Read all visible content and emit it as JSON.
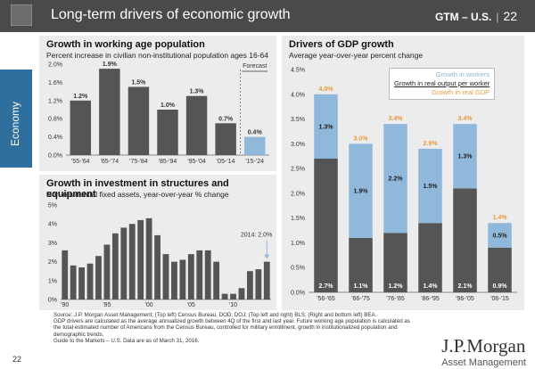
{
  "header": {
    "title": "Long-term drivers of economic growth",
    "right_label": "GTM – U.S.",
    "page": "22"
  },
  "side_tab": "Economy",
  "chart_data": [
    {
      "id": "working_age",
      "type": "bar",
      "title": "Growth in working age population",
      "subtitle": "Percent increase in civilian non-institutional population ages 16-64",
      "categories": [
        "'55-'64",
        "'65-'74",
        "'75-'84",
        "'85-'94",
        "'95-'04",
        "'05-'14",
        "'15-'24"
      ],
      "values": [
        1.2,
        1.9,
        1.5,
        1.0,
        1.3,
        0.7,
        0.4
      ],
      "data_labels": [
        "1.2%",
        "1.9%",
        "1.5%",
        "1.0%",
        "1.3%",
        "0.7%",
        "0.4%"
      ],
      "forecast_label": "Forecast",
      "forecast_index": 6,
      "yticks": [
        "0.0%",
        "0.4%",
        "0.8%",
        "1.2%",
        "1.6%",
        "2.0%"
      ],
      "ylim": [
        0,
        2.0
      ],
      "colors": {
        "bar": "#555555",
        "forecast": "#8fb8da"
      }
    },
    {
      "id": "investment",
      "type": "bar",
      "title": "Growth in investment in structures and equipment",
      "subtitle": "Non-residential fixed assets, year-over-year % change",
      "x": [
        1990,
        1991,
        1992,
        1993,
        1994,
        1995,
        1996,
        1997,
        1998,
        1999,
        2000,
        2001,
        2002,
        2003,
        2004,
        2005,
        2006,
        2007,
        2008,
        2009,
        2010,
        2011,
        2012,
        2013,
        2014
      ],
      "values": [
        2.6,
        1.8,
        1.7,
        1.9,
        2.3,
        2.9,
        3.5,
        3.8,
        4.0,
        4.2,
        4.3,
        3.4,
        2.4,
        2.0,
        2.1,
        2.4,
        2.6,
        2.6,
        2.0,
        0.3,
        0.3,
        0.6,
        1.5,
        1.6,
        2.0
      ],
      "xtick_labels": [
        "'90",
        "'95",
        "'00",
        "'05",
        "'10"
      ],
      "annotation": "2014: 2.0%",
      "yticks": [
        "0%",
        "1%",
        "2%",
        "3%",
        "4%",
        "5%"
      ],
      "ylim": [
        0,
        5
      ],
      "colors": {
        "bar": "#555555",
        "annotation": "#8fb8da"
      }
    },
    {
      "id": "gdp_drivers",
      "type": "bar",
      "title": "Drivers of GDP growth",
      "subtitle": "Average year-over-year percent change",
      "categories": [
        "'56-'65",
        "'66-'75",
        "'76-'85",
        "'86-'95",
        "'96-'05",
        "'06-'15"
      ],
      "series": [
        {
          "name": "Growth in real output per worker",
          "values": [
            2.7,
            1.1,
            1.2,
            1.4,
            2.1,
            0.9
          ],
          "labels": [
            "2.7%",
            "1.1%",
            "1.2%",
            "1.4%",
            "2.1%",
            "0.9%"
          ]
        },
        {
          "name": "Growth in workers",
          "values": [
            1.3,
            1.9,
            2.2,
            1.5,
            1.3,
            0.5
          ],
          "labels": [
            "1.3%",
            "1.9%",
            "2.2%",
            "1.5%",
            "1.3%",
            "0.5%"
          ]
        }
      ],
      "totals": {
        "name": "Growth in real GDP",
        "labels": [
          "4.0%",
          "3.0%",
          "3.4%",
          "2.9%",
          "3.4%",
          "1.4%"
        ]
      },
      "yticks": [
        "0.0%",
        "0.5%",
        "1.0%",
        "1.5%",
        "2.0%",
        "2.5%",
        "3.0%",
        "3.5%",
        "4.0%",
        "4.5%"
      ],
      "ylim": [
        0,
        4.5
      ],
      "legend": [
        "Growth in workers",
        "Growth in real output per worker",
        "Growth in real GDP"
      ],
      "colors": {
        "workers": "#8fb8da",
        "output": "#555555",
        "gdp": "#e79a3a"
      }
    }
  ],
  "footnotes": [
    "Source: J.P. Morgan Asset Management; (Top left) Census Bureau, DOD, DOJ; (Top left and right) BLS; (Right and bottom left) BEA.",
    "GDP drivers are calculated as the average annualized growth between 4Q of the first and last year. Future working age population is calculated as the total estimated number of Americans from the Census Bureau, controlled for military enrollment, growth in institutionalized population and demographic trends.",
    "Guide to the Markets – U.S. Data are as of March 31, 2016."
  ],
  "page_number": "22",
  "brand": {
    "name": "J.P.Morgan",
    "sub": "Asset Management"
  }
}
